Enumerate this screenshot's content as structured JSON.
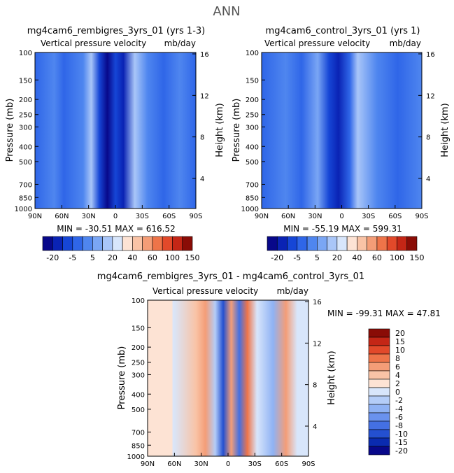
{
  "figure_title": "ANN",
  "chart_data": [
    {
      "type": "heatmap",
      "title": "mg4cam6_rembigres_3yrs_01 (yrs 1-3)",
      "subtitle_left": "Vertical pressure velocity",
      "subtitle_right": "mb/day",
      "ylabel": "Pressure (mb)",
      "ylabel_right": "Height (km)",
      "x_ticks": [
        "90N",
        "60N",
        "30N",
        "0",
        "30S",
        "60S",
        "90S"
      ],
      "y_ticks": [
        "100",
        "150",
        "200",
        "250",
        "300",
        "400",
        "500",
        "700",
        "850",
        "1000"
      ],
      "y_ticks_right": [
        "16",
        "12",
        "8",
        "4"
      ],
      "stats": "MIN = -30.51   MAX = 616.52",
      "colorbar_labels": [
        "-20",
        "-5",
        "5",
        "20",
        "40",
        "60",
        "100",
        "150"
      ]
    },
    {
      "type": "heatmap",
      "title": "mg4cam6_control_3yrs_01 (yrs 1)",
      "subtitle_left": "Vertical pressure velocity",
      "subtitle_right": "mb/day",
      "ylabel": "Pressure (mb)",
      "ylabel_right": "Height (km)",
      "x_ticks": [
        "90N",
        "60N",
        "30N",
        "0",
        "30S",
        "60S",
        "90S"
      ],
      "y_ticks": [
        "100",
        "150",
        "200",
        "250",
        "300",
        "400",
        "500",
        "700",
        "850",
        "1000"
      ],
      "y_ticks_right": [
        "16",
        "12",
        "8",
        "4"
      ],
      "stats": "MIN = -55.19   MAX = 599.31",
      "colorbar_labels": [
        "-20",
        "-5",
        "5",
        "20",
        "40",
        "60",
        "100",
        "150"
      ]
    },
    {
      "type": "heatmap",
      "title": "mg4cam6_rembigres_3yrs_01 - mg4cam6_control_3yrs_01",
      "subtitle_left": "Vertical pressure velocity",
      "subtitle_right": "mb/day",
      "ylabel": "Pressure (mb)",
      "ylabel_right": "Height (km)",
      "x_ticks": [
        "90N",
        "60N",
        "30N",
        "0",
        "30S",
        "60S",
        "90S"
      ],
      "y_ticks": [
        "100",
        "150",
        "200",
        "250",
        "300",
        "400",
        "500",
        "700",
        "850",
        "1000"
      ],
      "y_ticks_right": [
        "16",
        "12",
        "8",
        "4"
      ],
      "stats": "MIN = -99.31   MAX =  47.81",
      "colorbar_labels": [
        "20",
        "15",
        "10",
        "8",
        "6",
        "4",
        "2",
        "0",
        "-2",
        "-4",
        "-6",
        "-8",
        "-10",
        "-15",
        "-20"
      ]
    }
  ],
  "colors": {
    "abs_scale": [
      "#08088a",
      "#0a23b4",
      "#1646d6",
      "#2f66e8",
      "#4f86ef",
      "#7aa6f4",
      "#a9c6f8",
      "#d8e6fb",
      "#fde3d4",
      "#f9c3a6",
      "#f49d77",
      "#ee7449",
      "#e2492a",
      "#c42616",
      "#8a0c06"
    ],
    "diff_scale": [
      "#8a0c06",
      "#c42616",
      "#e2492a",
      "#ee7449",
      "#f49d77",
      "#f9c3a6",
      "#fde3d4",
      "#d8e6fb",
      "#b4cdf8",
      "#8fb2f4",
      "#6a92ee",
      "#4470e3",
      "#2450d0",
      "#0a2bb0",
      "#08088a"
    ]
  }
}
